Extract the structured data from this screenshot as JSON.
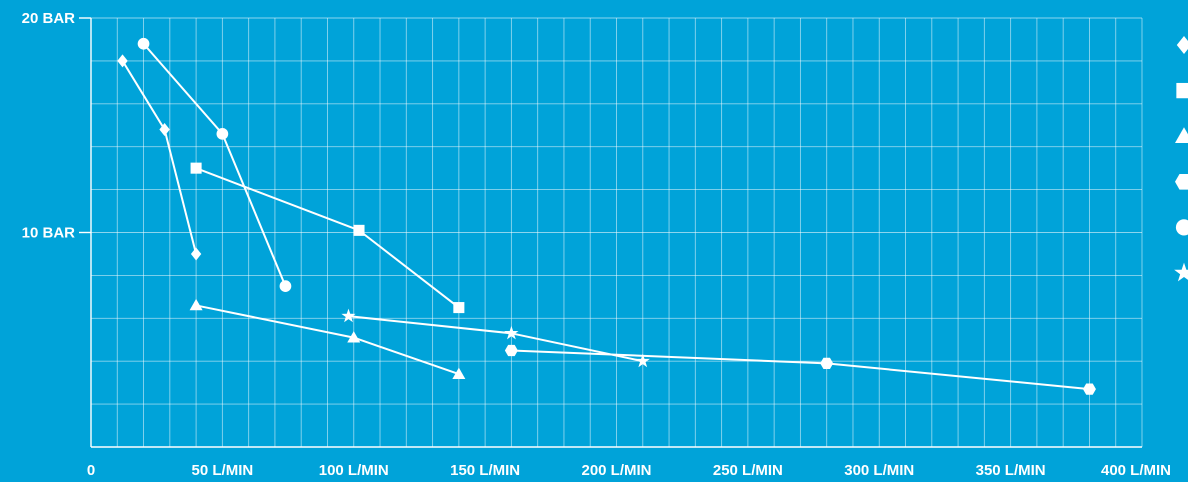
{
  "chart_data": {
    "type": "line",
    "title": "",
    "xlabel": "",
    "ylabel": "",
    "xlim": [
      0,
      400
    ],
    "ylim": [
      0,
      20
    ],
    "grid": true,
    "legend": "right (symbols only, no text)",
    "x_ticks": [
      {
        "value": 0,
        "label": "0"
      },
      {
        "value": 50,
        "label": "50 L/MIN"
      },
      {
        "value": 100,
        "label": "100 L/MIN"
      },
      {
        "value": 150,
        "label": "150 L/MIN"
      },
      {
        "value": 200,
        "label": "200 L/MIN"
      },
      {
        "value": 250,
        "label": "250 L/MIN"
      },
      {
        "value": 300,
        "label": "300 L/MIN"
      },
      {
        "value": 350,
        "label": "350 L/MIN"
      },
      {
        "value": 400,
        "label": "400 L/MIN"
      }
    ],
    "y_ticks": [
      {
        "value": 10,
        "label": "10 BAR"
      },
      {
        "value": 20,
        "label": "20 BAR"
      }
    ],
    "colors": {
      "background": "#00a3d9",
      "foreground": "#ffffff"
    },
    "series": [
      {
        "marker": "diamond",
        "points": [
          [
            12,
            18
          ],
          [
            28,
            14.8
          ],
          [
            40,
            9
          ]
        ]
      },
      {
        "marker": "square",
        "points": [
          [
            40,
            13
          ],
          [
            102,
            10.1
          ],
          [
            140,
            6.5
          ]
        ]
      },
      {
        "marker": "triangle",
        "points": [
          [
            40,
            6.6
          ],
          [
            100,
            5.1
          ],
          [
            140,
            3.4
          ]
        ]
      },
      {
        "marker": "hexagon",
        "points": [
          [
            160,
            4.5
          ],
          [
            280,
            3.9
          ],
          [
            380,
            2.7
          ]
        ]
      },
      {
        "marker": "circle",
        "points": [
          [
            20,
            18.8
          ],
          [
            50,
            14.6
          ],
          [
            74,
            7.5
          ]
        ]
      },
      {
        "marker": "star",
        "points": [
          [
            98,
            6.1
          ],
          [
            160,
            5.3
          ],
          [
            210,
            4
          ]
        ]
      }
    ]
  }
}
